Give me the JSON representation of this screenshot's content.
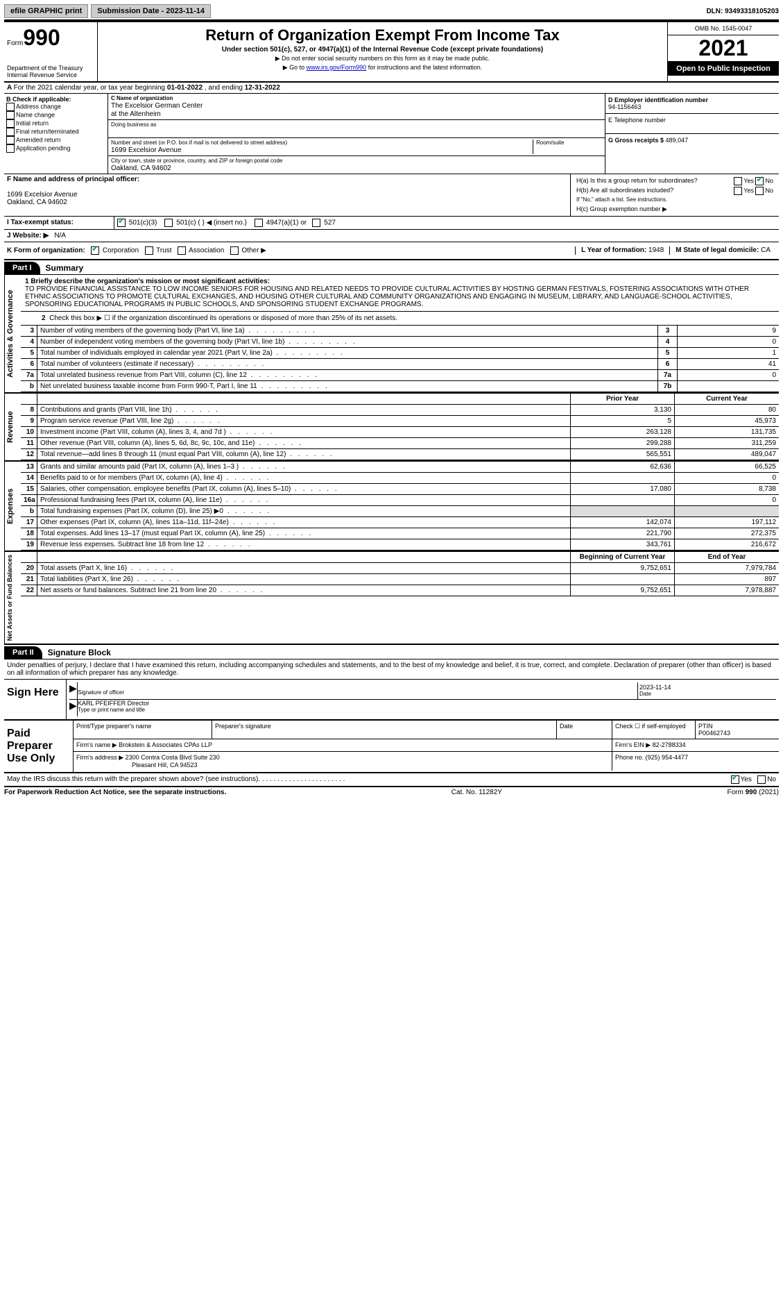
{
  "topbar": {
    "efile": "efile GRAPHIC print",
    "submission_label": "Submission Date - ",
    "submission_date": "2023-11-14",
    "dln_label": "DLN: ",
    "dln": "93493318105203"
  },
  "header": {
    "form_word": "Form",
    "form_num": "990",
    "dept": "Department of the Treasury\nInternal Revenue Service",
    "title": "Return of Organization Exempt From Income Tax",
    "subtitle": "Under section 501(c), 527, or 4947(a)(1) of the Internal Revenue Code (except private foundations)",
    "note1": "Do not enter social security numbers on this form as it may be made public.",
    "note2_pre": "Go to ",
    "note2_link": "www.irs.gov/Form990",
    "note2_post": " for instructions and the latest information.",
    "omb": "OMB No. 1545-0047",
    "year": "2021",
    "open": "Open to Public Inspection"
  },
  "row_a": {
    "text": "For the 2021 calendar year, or tax year beginning ",
    "begin": "01-01-2022",
    "mid": " , and ending ",
    "end": "12-31-2022"
  },
  "section_b": {
    "label": "B Check if applicable:",
    "items": [
      "Address change",
      "Name change",
      "Initial return",
      "Final return/terminated",
      "Amended return",
      "Application pending"
    ]
  },
  "section_c": {
    "name_label": "C Name of organization",
    "name1": "The Excelsior German Center",
    "name2": "at the Altenheim",
    "dba_label": "Doing business as",
    "addr_label": "Number and street (or P.O. box if mail is not delivered to street address)",
    "room_label": "Room/suite",
    "addr": "1699 Excelsior Avenue",
    "city_label": "City or town, state or province, country, and ZIP or foreign postal code",
    "city": "Oakland, CA  94602"
  },
  "section_d": {
    "ein_label": "D Employer identification number",
    "ein": "94-1156463",
    "phone_label": "E Telephone number",
    "gross_label": "G Gross receipts $ ",
    "gross": "489,047"
  },
  "section_f": {
    "label": "F  Name and address of principal officer:",
    "addr1": "1699 Excelsior Avenue",
    "addr2": "Oakland, CA  94602"
  },
  "section_h": {
    "ha": "H(a)  Is this a group return for subordinates?",
    "hb": "H(b)  Are all subordinates included?",
    "hb_note": "If \"No,\" attach a list. See instructions.",
    "hc": "H(c)  Group exemption number ▶",
    "yes": "Yes",
    "no": "No"
  },
  "row_i": {
    "label": "I  Tax-exempt status:",
    "o1": "501(c)(3)",
    "o2": "501(c) (   ) ◀ (insert no.)",
    "o3": "4947(a)(1) or",
    "o4": "527"
  },
  "row_j": {
    "label": "J  Website: ▶",
    "val": "N/A"
  },
  "row_k": {
    "label": "K Form of organization:",
    "o1": "Corporation",
    "o2": "Trust",
    "o3": "Association",
    "o4": "Other ▶",
    "l_label": "L Year of formation: ",
    "l_val": "1948",
    "m_label": "M State of legal domicile: ",
    "m_val": "CA"
  },
  "part1": {
    "tab": "Part I",
    "title": "Summary",
    "mission_label": "1  Briefly describe the organization's mission or most significant activities:",
    "mission": "TO PROVIDE FINANCIAL ASSISTANCE TO LOW INCOME SENIORS FOR HOUSING AND RELATED NEEDS TO PROVIDE CULTURAL ACTIVITIES BY HOSTING GERMAN FESTIVALS, FOSTERING ASSOCIATIONS WITH OTHER ETHNIC ASSOCIATIONS TO PROMOTE CULTURAL EXCHANGES, AND HOUSING OTHER CULTURAL AND COMMUNITY ORGANIZATIONS AND ENGAGING IN MUSEUM, LIBRARY, AND LANGUAGE-SCHOOL ACTIVITIES, SPONSORING EDUCATIONAL PROGRAMS IN PUBLIC SCHOOLS, AND SPONSORING STUDENT EXCHANGE PROGRAMS.",
    "line2": "Check this box ▶ ☐ if the organization discontinued its operations or disposed of more than 25% of its net assets.",
    "vert_ag": "Activities & Governance",
    "vert_rev": "Revenue",
    "vert_exp": "Expenses",
    "vert_net": "Net Assets or Fund Balances",
    "rows_ag": [
      {
        "n": "3",
        "t": "Number of voting members of the governing body (Part VI, line 1a)",
        "b": "3",
        "v": "9"
      },
      {
        "n": "4",
        "t": "Number of independent voting members of the governing body (Part VI, line 1b)",
        "b": "4",
        "v": "0"
      },
      {
        "n": "5",
        "t": "Total number of individuals employed in calendar year 2021 (Part V, line 2a)",
        "b": "5",
        "v": "1"
      },
      {
        "n": "6",
        "t": "Total number of volunteers (estimate if necessary)",
        "b": "6",
        "v": "41"
      },
      {
        "n": "7a",
        "t": "Total unrelated business revenue from Part VIII, column (C), line 12",
        "b": "7a",
        "v": "0"
      },
      {
        "n": "b",
        "t": "Net unrelated business taxable income from Form 990-T, Part I, line 11",
        "b": "7b",
        "v": ""
      }
    ],
    "col_prior": "Prior Year",
    "col_current": "Current Year",
    "rows_rev": [
      {
        "n": "8",
        "t": "Contributions and grants (Part VIII, line 1h)",
        "p": "3,130",
        "c": "80"
      },
      {
        "n": "9",
        "t": "Program service revenue (Part VIII, line 2g)",
        "p": "5",
        "c": "45,973"
      },
      {
        "n": "10",
        "t": "Investment income (Part VIII, column (A), lines 3, 4, and 7d )",
        "p": "263,128",
        "c": "131,735"
      },
      {
        "n": "11",
        "t": "Other revenue (Part VIII, column (A), lines 5, 6d, 8c, 9c, 10c, and 11e)",
        "p": "299,288",
        "c": "311,259"
      },
      {
        "n": "12",
        "t": "Total revenue—add lines 8 through 11 (must equal Part VIII, column (A), line 12)",
        "p": "565,551",
        "c": "489,047"
      }
    ],
    "rows_exp": [
      {
        "n": "13",
        "t": "Grants and similar amounts paid (Part IX, column (A), lines 1–3 )",
        "p": "62,636",
        "c": "66,525"
      },
      {
        "n": "14",
        "t": "Benefits paid to or for members (Part IX, column (A), line 4)",
        "p": "",
        "c": "0"
      },
      {
        "n": "15",
        "t": "Salaries, other compensation, employee benefits (Part IX, column (A), lines 5–10)",
        "p": "17,080",
        "c": "8,738"
      },
      {
        "n": "16a",
        "t": "Professional fundraising fees (Part IX, column (A), line 11e)",
        "p": "",
        "c": "0"
      },
      {
        "n": "b",
        "t": "Total fundraising expenses (Part IX, column (D), line 25) ▶0",
        "p": "shaded",
        "c": "shaded"
      },
      {
        "n": "17",
        "t": "Other expenses (Part IX, column (A), lines 11a–11d, 11f–24e)",
        "p": "142,074",
        "c": "197,112"
      },
      {
        "n": "18",
        "t": "Total expenses. Add lines 13–17 (must equal Part IX, column (A), line 25)",
        "p": "221,790",
        "c": "272,375"
      },
      {
        "n": "19",
        "t": "Revenue less expenses. Subtract line 18 from line 12",
        "p": "343,761",
        "c": "216,672"
      }
    ],
    "col_begin": "Beginning of Current Year",
    "col_end": "End of Year",
    "rows_net": [
      {
        "n": "20",
        "t": "Total assets (Part X, line 16)",
        "p": "9,752,651",
        "c": "7,979,784"
      },
      {
        "n": "21",
        "t": "Total liabilities (Part X, line 26)",
        "p": "",
        "c": "897"
      },
      {
        "n": "22",
        "t": "Net assets or fund balances. Subtract line 21 from line 20",
        "p": "9,752,651",
        "c": "7,978,887"
      }
    ]
  },
  "part2": {
    "tab": "Part II",
    "title": "Signature Block",
    "decl": "Under penalties of perjury, I declare that I have examined this return, including accompanying schedules and statements, and to the best of my knowledge and belief, it is true, correct, and complete. Declaration of preparer (other than officer) is based on all information of which preparer has any knowledge.",
    "sign_here": "Sign Here",
    "sig_officer": "Signature of officer",
    "sig_date": "Date",
    "sig_date_val": "2023-11-14",
    "officer_name": "KARL PFEIFFER  Director",
    "officer_label": "Type or print name and title",
    "paid": "Paid Preparer Use Only",
    "prep_name_label": "Print/Type preparer's name",
    "prep_sig_label": "Preparer's signature",
    "date_label": "Date",
    "check_self": "Check ☐ if self-employed",
    "ptin_label": "PTIN",
    "ptin": "P00462743",
    "firm_name_label": "Firm's name    ▶ ",
    "firm_name": "Brokstein & Associates CPAs LLP",
    "firm_ein_label": "Firm's EIN ▶ ",
    "firm_ein": "82-2788334",
    "firm_addr_label": "Firm's address ▶ ",
    "firm_addr1": "2300 Contra Costa Blvd Suite 230",
    "firm_addr2": "Pleasant Hill, CA  94523",
    "phone_label": "Phone no. ",
    "phone": "(925) 954-4477",
    "discuss": "May the IRS discuss this return with the preparer shown above? (see instructions)",
    "yes": "Yes",
    "no": "No"
  },
  "footer": {
    "pra": "For Paperwork Reduction Act Notice, see the separate instructions.",
    "cat": "Cat. No. 11282Y",
    "form": "Form 990 (2021)"
  }
}
